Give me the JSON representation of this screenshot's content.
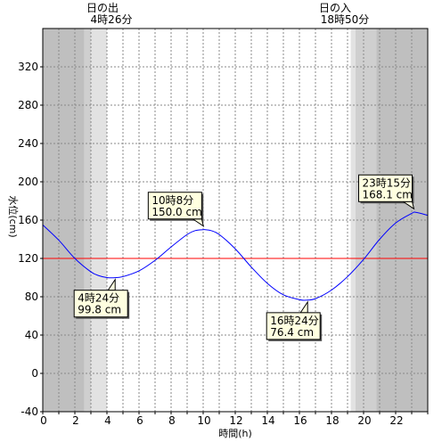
{
  "chart_data": {
    "type": "line",
    "xlabel": "時間(h)",
    "ylabel": "水位(cm)",
    "xlim": [
      0,
      24
    ],
    "ylim": [
      -40,
      360
    ],
    "x_ticks": [
      0,
      2,
      4,
      6,
      8,
      10,
      12,
      14,
      16,
      18,
      20,
      22
    ],
    "y_ticks": [
      -40,
      0,
      40,
      80,
      120,
      160,
      200,
      240,
      280,
      320
    ],
    "grid": true,
    "reference_line": {
      "value": 120,
      "color": "#ff0000"
    },
    "sunrise": {
      "label": "日の出",
      "time_text": "4時26分",
      "time_h": 4.433
    },
    "sunset": {
      "label": "日の入",
      "time_text": "18時50分",
      "time_h": 18.833
    },
    "night_shading": [
      {
        "from": 0,
        "to": 2.6,
        "level": "dark"
      },
      {
        "from": 2.6,
        "to": 3.0,
        "level": "medium"
      },
      {
        "from": 3.0,
        "to": 4.0,
        "level": "light"
      },
      {
        "from": 19.2,
        "to": 19.5,
        "level": "light"
      },
      {
        "from": 19.5,
        "to": 20.8,
        "level": "medium"
      },
      {
        "from": 20.8,
        "to": 24,
        "level": "dark"
      }
    ],
    "series": [
      {
        "x": [
          0,
          1,
          2,
          3,
          3.5,
          4,
          4.4,
          5,
          6,
          7,
          8,
          9,
          9.5,
          10,
          10.13,
          10.5,
          11,
          12,
          13,
          14,
          15,
          16,
          16.4,
          17,
          18,
          19,
          20,
          21,
          22,
          23,
          23.25,
          24
        ],
        "values": [
          155,
          139,
          120,
          106,
          102,
          100,
          99.8,
          101,
          107,
          118,
          132,
          145,
          149,
          150,
          150,
          149,
          145,
          130,
          111,
          94,
          82,
          77,
          76.4,
          78,
          87,
          101,
          119,
          140,
          157,
          167,
          168.1,
          165
        ],
        "color": "#0000ff"
      }
    ],
    "annotations": [
      {
        "time_text": "4時24分",
        "value_text": "99.8 cm",
        "x": 4.4,
        "y": 99.8
      },
      {
        "time_text": "10時8分",
        "value_text": "150.0 cm",
        "x": 10.13,
        "y": 150.0
      },
      {
        "time_text": "16時24分",
        "value_text": "76.4 cm",
        "x": 16.4,
        "y": 76.4
      },
      {
        "time_text": "23時15分",
        "value_text": "168.1 cm",
        "x": 23.25,
        "y": 168.1
      }
    ],
    "colors": {
      "night_dark": "#bfbfbf",
      "night_medium": "#cfcfcf",
      "night_light": "#e2e2e2",
      "annotation_bg": "#ffffe0"
    }
  }
}
